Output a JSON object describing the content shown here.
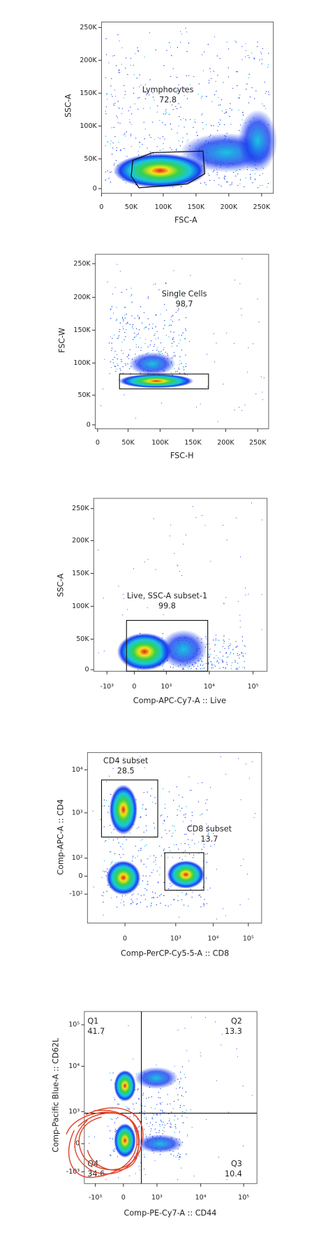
{
  "panels": [
    {
      "y_label": "SSC-A",
      "x_label": "FSC-A",
      "yticks": [
        "250K",
        "200K",
        "150K",
        "100K",
        "50K",
        "0"
      ],
      "xticks": [
        "0",
        "50K",
        "100K",
        "150K",
        "200K",
        "250K"
      ],
      "gates": [
        {
          "name": "Lymphocytes",
          "value": 72.8
        }
      ]
    },
    {
      "y_label": "FSC-W",
      "x_label": "FSC-H",
      "yticks": [
        "250K",
        "200K",
        "150K",
        "100K",
        "50K",
        "0"
      ],
      "xticks": [
        "0",
        "50K",
        "100K",
        "150K",
        "200K",
        "250K"
      ],
      "gates": [
        {
          "name": "Single Cells",
          "value": 98.7
        }
      ]
    },
    {
      "y_label": "SSC-A",
      "x_label": "Comp-APC-Cy7-A :: Live",
      "yticks": [
        "250K",
        "200K",
        "150K",
        "100K",
        "50K",
        "0"
      ],
      "xticks": [
        "-10³",
        "0",
        "10³",
        "10⁴",
        "10⁵"
      ],
      "gates": [
        {
          "name": "Live, SSC-A subset-1",
          "value": 99.8
        }
      ]
    },
    {
      "y_label": "Comp-APC-A :: CD4",
      "x_label": "Comp-PerCP-Cy5-5-A :: CD8",
      "yticks": [
        "10⁴",
        "10³",
        "10²",
        "0",
        "-10²"
      ],
      "xticks": [
        "0",
        "10³",
        "10⁴",
        "10⁵"
      ],
      "gates": [
        {
          "name": "CD4 subset",
          "value": 28.5
        },
        {
          "name": "CD8 subset",
          "value": 13.7
        }
      ]
    },
    {
      "y_label": "Comp-Pacific Blue-A :: CD62L",
      "x_label": "Comp-PE-Cy7-A :: CD44",
      "yticks": [
        "10⁵",
        "10⁴",
        "10³",
        "0",
        "-10³"
      ],
      "xticks": [
        "-10³",
        "0",
        "10³",
        "10⁴",
        "10⁵"
      ],
      "gates": [
        {
          "name": "Q1",
          "value": 41.7
        },
        {
          "name": "Q2",
          "value": 13.3
        },
        {
          "name": "Q3",
          "value": 10.4
        },
        {
          "name": "Q4",
          "value": 34.6
        }
      ]
    }
  ]
}
